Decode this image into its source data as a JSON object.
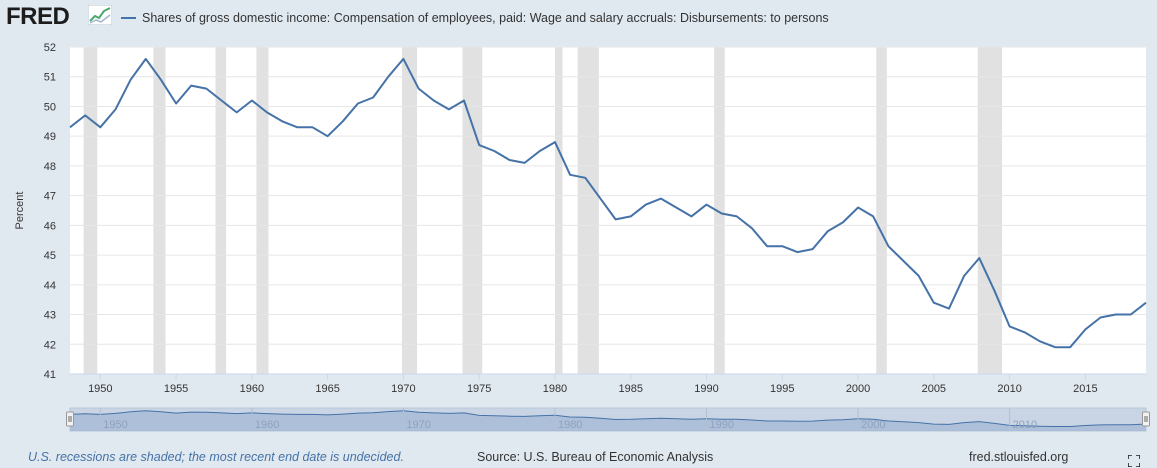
{
  "header": {
    "logo_text": "FRED",
    "logo_icon": "fred-sparkline-icon",
    "legend_label": "Shares of gross domestic income: Compensation of employees, paid: Wage and salary accruals: Disbursements: to persons"
  },
  "footer": {
    "recession_note": "U.S. recessions are shaded; the most recent end date is undecided.",
    "source": "Source: U.S. Bureau of Economic Analysis",
    "site": "fred.stlouisfed.org",
    "fullscreen_icon": "fullscreen-icon"
  },
  "colors": {
    "series": "#4572a7",
    "recession": "#e1e1e1",
    "background": "#e1e9f0",
    "plot": "#ffffff",
    "grid": "#e6e6e6"
  },
  "chart_data": {
    "type": "line",
    "title": "Shares of gross domestic income: Compensation of employees, paid: Wage and salary accruals: Disbursements: to persons",
    "xlabel": "",
    "ylabel": "Percent",
    "xlim": [
      1948,
      2019
    ],
    "ylim": [
      41,
      52
    ],
    "yticks": [
      "41",
      "42",
      "43",
      "44",
      "45",
      "46",
      "47",
      "48",
      "49",
      "50",
      "51",
      "52"
    ],
    "xticks": [
      "1950",
      "1955",
      "1960",
      "1965",
      "1970",
      "1975",
      "1980",
      "1985",
      "1990",
      "1995",
      "2000",
      "2005",
      "2010",
      "2015"
    ],
    "navigator_ticks": [
      "1950",
      "1960",
      "1970",
      "1980",
      "1990",
      "2000",
      "2010"
    ],
    "grid": true,
    "legend_position": "top-left",
    "recessions": [
      [
        1948.9,
        1949.8
      ],
      [
        1953.5,
        1954.3
      ],
      [
        1957.6,
        1958.3
      ],
      [
        1960.3,
        1961.1
      ],
      [
        1969.9,
        1970.9
      ],
      [
        1973.9,
        1975.2
      ],
      [
        1980.0,
        1980.5
      ],
      [
        1981.5,
        1982.9
      ],
      [
        1990.5,
        1991.2
      ],
      [
        2001.2,
        2001.9
      ],
      [
        2007.9,
        2009.5
      ]
    ],
    "series": [
      {
        "name": "Shares of gross domestic income: Compensation of employees, paid: Wage and salary accruals: Disbursements: to persons",
        "x": [
          1948,
          1949,
          1950,
          1951,
          1952,
          1953,
          1954,
          1955,
          1956,
          1957,
          1958,
          1959,
          1960,
          1961,
          1962,
          1963,
          1964,
          1965,
          1966,
          1967,
          1968,
          1969,
          1970,
          1971,
          1972,
          1973,
          1974,
          1975,
          1976,
          1977,
          1978,
          1979,
          1980,
          1981,
          1982,
          1983,
          1984,
          1985,
          1986,
          1987,
          1988,
          1989,
          1990,
          1991,
          1992,
          1993,
          1994,
          1995,
          1996,
          1997,
          1998,
          1999,
          2000,
          2001,
          2002,
          2003,
          2004,
          2005,
          2006,
          2007,
          2008,
          2009,
          2010,
          2011,
          2012,
          2013,
          2014,
          2015,
          2016,
          2017,
          2018,
          2019
        ],
        "values": [
          49.3,
          49.7,
          49.3,
          49.9,
          50.9,
          51.6,
          50.9,
          50.1,
          50.7,
          50.6,
          50.2,
          49.8,
          50.2,
          49.8,
          49.5,
          49.3,
          49.3,
          49.0,
          49.5,
          50.1,
          50.3,
          51.0,
          51.6,
          50.6,
          50.2,
          49.9,
          50.2,
          48.7,
          48.5,
          48.2,
          48.1,
          48.5,
          48.8,
          47.7,
          47.6,
          46.9,
          46.2,
          46.3,
          46.7,
          46.9,
          46.6,
          46.3,
          46.7,
          46.4,
          46.3,
          45.9,
          45.3,
          45.3,
          45.1,
          45.2,
          45.8,
          46.1,
          46.6,
          46.3,
          45.3,
          44.8,
          44.3,
          43.4,
          43.2,
          44.3,
          44.9,
          43.8,
          42.6,
          42.4,
          42.1,
          41.9,
          41.9,
          42.5,
          42.9,
          43.0,
          43.0,
          43.4
        ]
      }
    ]
  }
}
